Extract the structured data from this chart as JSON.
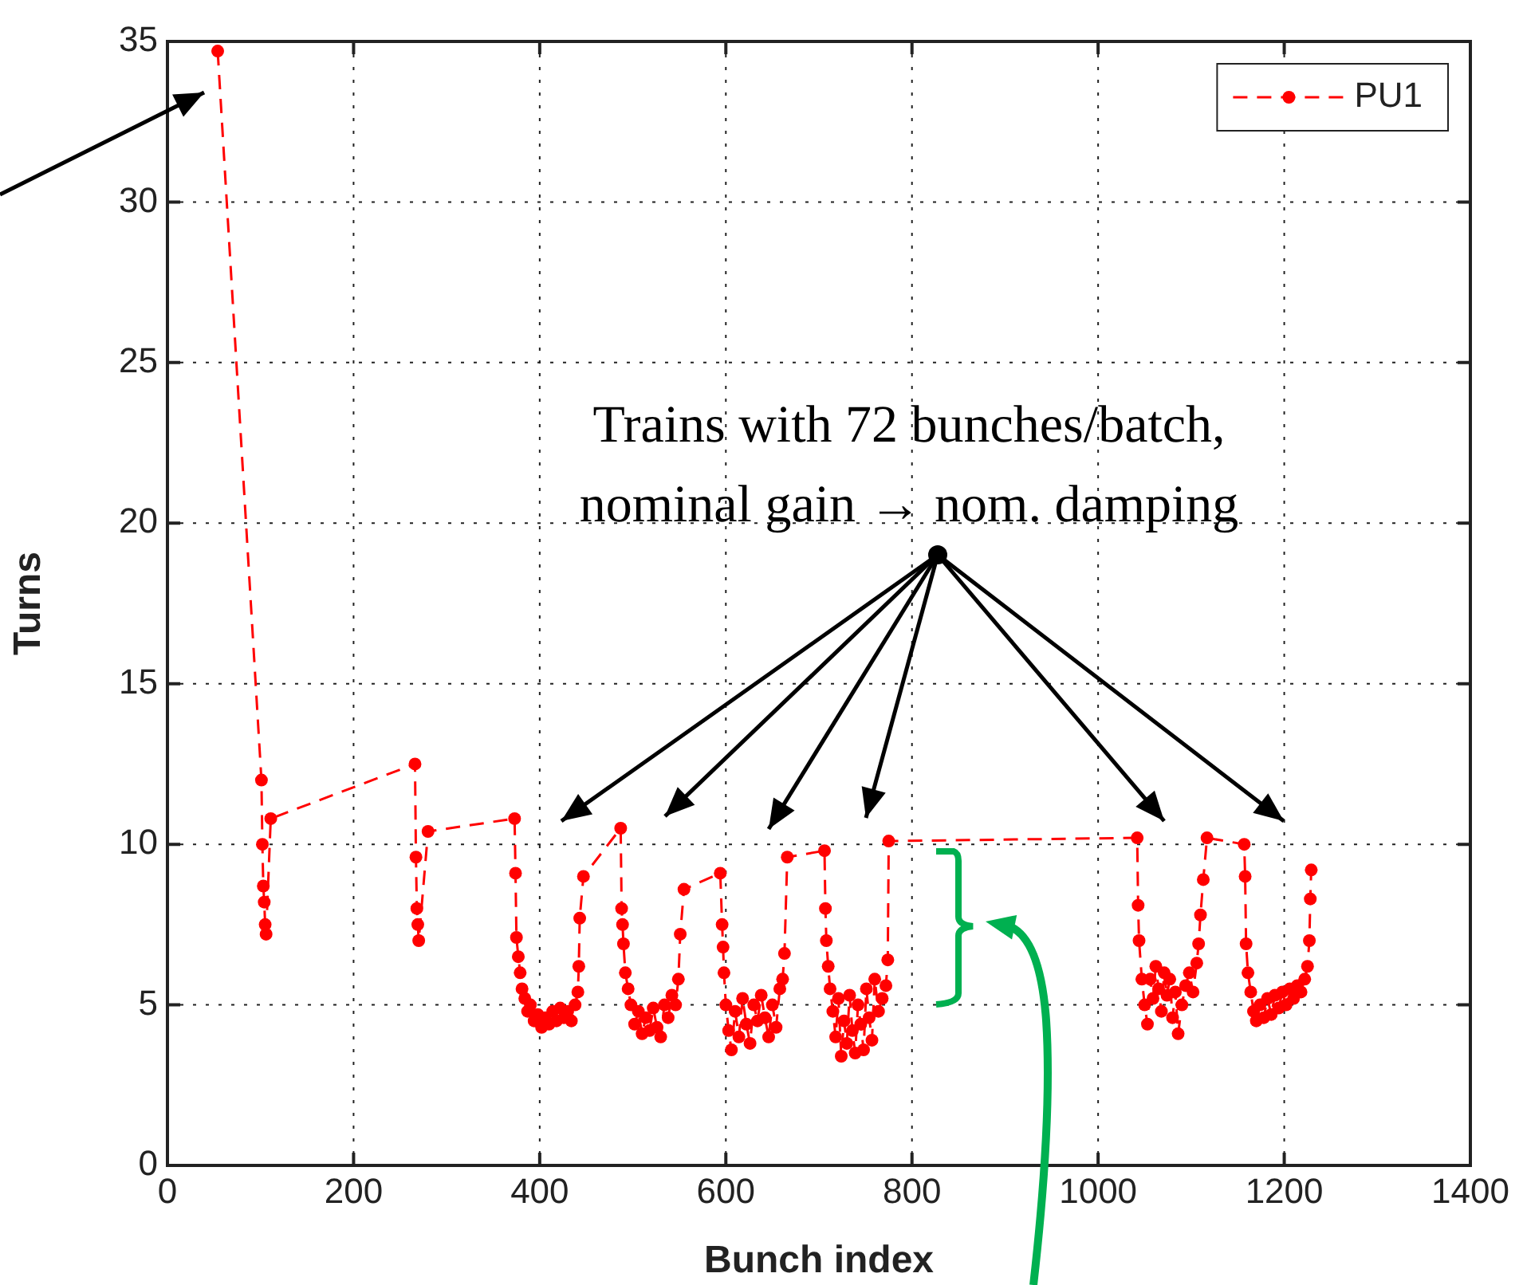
{
  "chart_data": {
    "type": "line",
    "xlabel": "Bunch index",
    "ylabel": "Turns",
    "xlim": [
      0,
      1400
    ],
    "xticks": [
      0,
      200,
      400,
      600,
      800,
      1000,
      1200,
      1400
    ],
    "ylim": [
      0,
      35
    ],
    "yticks": [
      0,
      5,
      10,
      15,
      20,
      25,
      30,
      35
    ],
    "grid": true,
    "legend": "top right",
    "marker": "circle",
    "line_style": "dashed",
    "annotations": [
      "Trains with 72 bunches/batch, nominal gain → nom. damping"
    ],
    "series": [
      {
        "name": "PU1",
        "color": "#ff0000",
        "x": [
          54,
          101,
          102,
          103,
          104,
          105,
          106,
          111,
          266,
          267,
          268,
          269,
          270,
          280,
          373,
          374,
          375,
          377,
          379,
          381,
          384,
          387,
          390,
          394,
          398,
          402,
          406,
          410,
          414,
          418,
          422,
          426,
          430,
          434,
          438,
          441,
          442,
          443,
          447,
          487,
          488,
          489,
          490,
          492,
          495,
          498,
          502,
          506,
          510,
          514,
          518,
          522,
          526,
          530,
          534,
          538,
          542,
          546,
          549,
          551,
          555,
          594,
          596,
          597,
          598,
          600,
          603,
          606,
          610,
          614,
          618,
          622,
          626,
          630,
          634,
          638,
          642,
          646,
          650,
          654,
          658,
          661,
          663,
          666,
          706,
          707,
          708,
          710,
          712,
          715,
          718,
          721,
          724,
          727,
          730,
          733,
          736,
          739,
          742,
          745,
          748,
          751,
          754,
          757,
          760,
          764,
          768,
          772,
          774,
          775,
          1042,
          1043,
          1044,
          1047,
          1050,
          1053,
          1056,
          1059,
          1062,
          1065,
          1068,
          1071,
          1074,
          1077,
          1080,
          1083,
          1086,
          1090,
          1094,
          1098,
          1102,
          1106,
          1108,
          1110,
          1113,
          1117,
          1157,
          1158,
          1159,
          1161,
          1164,
          1167,
          1170,
          1174,
          1178,
          1182,
          1186,
          1190,
          1194,
          1198,
          1202,
          1206,
          1210,
          1214,
          1218,
          1222,
          1225,
          1227,
          1228,
          1229
        ],
        "values": [
          34.7,
          12,
          10,
          8.7,
          8.2,
          7.5,
          7.2,
          10.8,
          12.5,
          9.6,
          8,
          7.5,
          7,
          10.4,
          10.8,
          9.1,
          7.1,
          6.5,
          6,
          5.5,
          5.2,
          4.8,
          5,
          4.5,
          4.7,
          4.3,
          4.6,
          4.4,
          4.8,
          4.5,
          4.9,
          4.6,
          4.8,
          4.5,
          5,
          5.4,
          6.2,
          7.7,
          9,
          10.5,
          8,
          7.5,
          6.9,
          6,
          5.5,
          5,
          4.4,
          4.8,
          4.1,
          4.6,
          4.2,
          4.9,
          4.3,
          4,
          5,
          4.6,
          5.3,
          5,
          5.8,
          7.2,
          8.6,
          9.1,
          7.5,
          6.8,
          6,
          5,
          4.2,
          3.6,
          4.8,
          4,
          5.2,
          4.4,
          3.8,
          5,
          4.5,
          5.3,
          4.6,
          4,
          5,
          4.3,
          5.5,
          5.8,
          6.6,
          9.6,
          9.8,
          8,
          7,
          6.2,
          5.5,
          4.8,
          4,
          5.2,
          3.4,
          4.5,
          3.8,
          5.3,
          4.2,
          3.5,
          5,
          4.4,
          3.6,
          5.5,
          4.6,
          3.9,
          5.8,
          4.8,
          5.2,
          5.6,
          6.4,
          10.1,
          10.2,
          8.1,
          7,
          5.8,
          5,
          4.4,
          5.8,
          5.2,
          6.2,
          5.5,
          4.8,
          6,
          5.3,
          5.8,
          4.6,
          5.4,
          4.1,
          5,
          5.6,
          6,
          5.4,
          6.3,
          6.9,
          7.8,
          8.9,
          10.2,
          10,
          9,
          6.9,
          6,
          5.4,
          4.8,
          4.5,
          5,
          4.6,
          5.2,
          4.7,
          5.3,
          4.9,
          5.4,
          5,
          5.5,
          5.2,
          5.6,
          5.4,
          5.8,
          6.2,
          7,
          8.3,
          9.2
        ]
      }
    ]
  }
}
